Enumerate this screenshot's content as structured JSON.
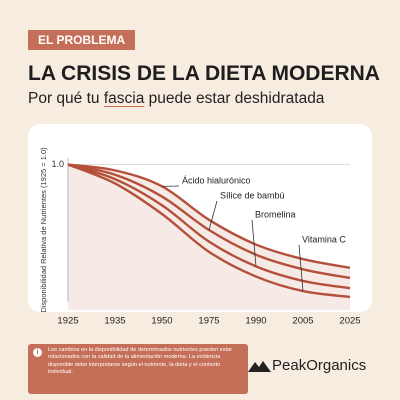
{
  "header": {
    "badge": "EL PROBLEMA",
    "title": "LA CRISIS DE LA DIETA MODERNA",
    "subtitle": [
      "Por qué tu ",
      "fascia",
      " puede estar deshidratada"
    ]
  },
  "chart_data": {
    "type": "line",
    "ylabel": "Disponibilidad Relativa de Nutrientes (1925 = 1.0)",
    "categories": [
      "1925",
      "1935",
      "1950",
      "1975",
      "1990",
      "2005",
      "2025"
    ],
    "series": [
      {
        "name": "Ácido hialurónico",
        "color": "#b4503a",
        "values": [
          1.0,
          0.96,
          0.85,
          0.62,
          0.45,
          0.35,
          0.29
        ]
      },
      {
        "name": "Sílice de bambú",
        "color": "#b4503a",
        "values": [
          1.0,
          0.93,
          0.78,
          0.55,
          0.38,
          0.28,
          0.22
        ]
      },
      {
        "name": "Bromelina",
        "color": "#b4503a",
        "values": [
          1.0,
          0.9,
          0.72,
          0.47,
          0.3,
          0.2,
          0.15
        ]
      },
      {
        "name": "Vitamina C",
        "color": "#b4503a",
        "values": [
          1.0,
          0.87,
          0.66,
          0.4,
          0.23,
          0.13,
          0.09
        ]
      }
    ],
    "ylim": [
      0,
      1.1
    ],
    "yticks": [
      {
        "value": 1,
        "label": "1.0"
      }
    ],
    "grid": true
  },
  "footer": {
    "note": "Los cambios en la disponibilidad de determinados nutrientes pueden estar relacionados con la calidad de la alimentación moderna. La evidencia disponible debe interpretarse según el nutriente, la dieta y el contexto individual.",
    "brand": "PeakOrganics"
  }
}
